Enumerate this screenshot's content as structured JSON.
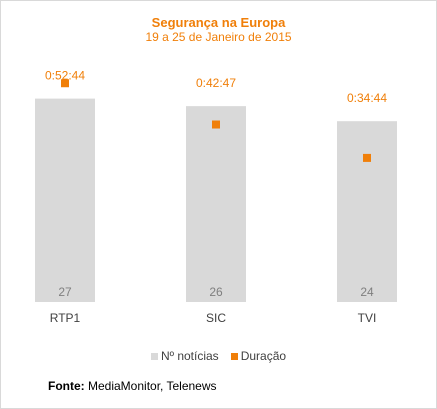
{
  "colors": {
    "bar": "#d9d9d9",
    "marker": "#f07f09",
    "title": "#f07f09",
    "bar_label": "#7f7f7f",
    "category_label": "#404040"
  },
  "source": {
    "label": "Fonte:",
    "text": "MediaMonitor, Telenews"
  },
  "chart_data": {
    "type": "bar",
    "title": "Segurança na Europa",
    "subtitle": "19 a 25 de Janeiro de 2015",
    "categories": [
      "RTP1",
      "SIC",
      "TVI"
    ],
    "series": [
      {
        "name": "Nº notícias",
        "kind": "bar",
        "values": [
          27,
          26,
          24
        ],
        "labels": [
          "27",
          "26",
          "24"
        ]
      },
      {
        "name": "Duração",
        "kind": "marker",
        "values_seconds": [
          3164,
          2567,
          2084
        ],
        "labels": [
          "0:52:44",
          "0:42:47",
          "0:34:44"
        ]
      }
    ],
    "legend_position": "bottom",
    "grid": false,
    "ylim_bars": [
      0,
      30
    ],
    "ylim_duration_seconds": [
      0,
      3500
    ]
  }
}
